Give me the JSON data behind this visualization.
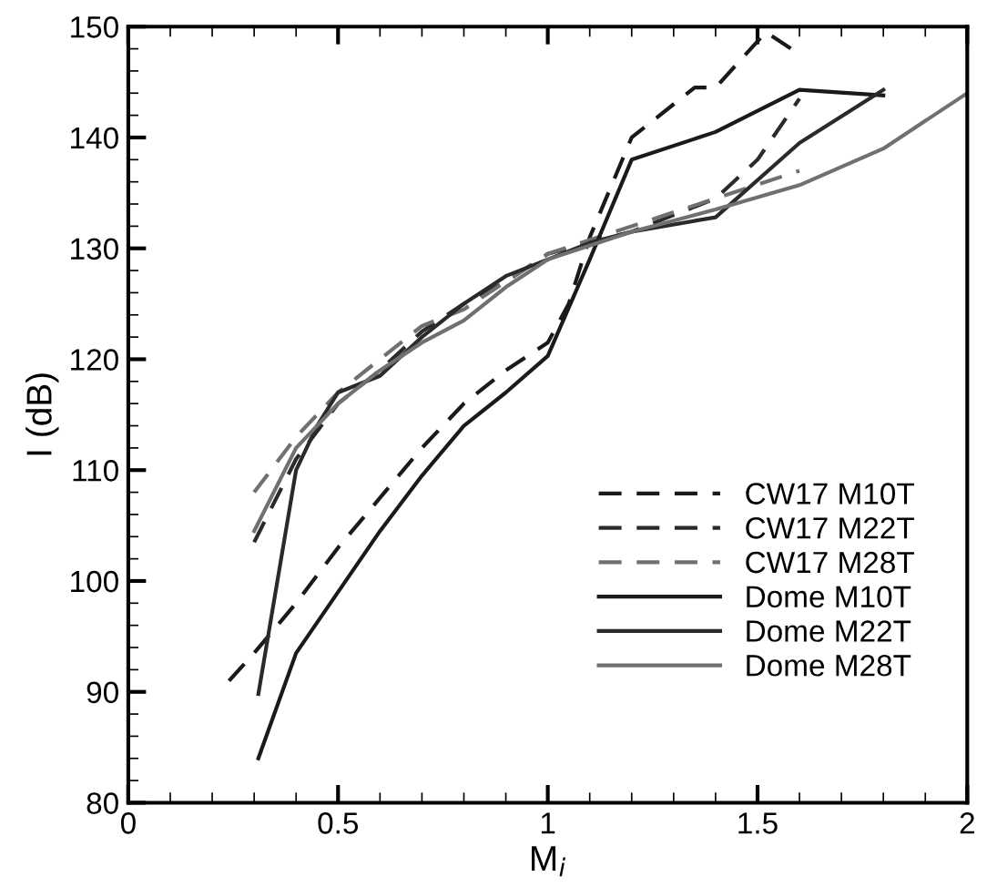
{
  "chart_data": {
    "type": "line",
    "xlabel": "M$_{i}$",
    "ylabel": "I (dB)",
    "xlim": [
      0,
      2
    ],
    "ylim": [
      80,
      150
    ],
    "xticks": [
      0,
      0.5,
      1,
      1.5,
      2
    ],
    "yticks": [
      80,
      90,
      100,
      110,
      120,
      130,
      140,
      150
    ],
    "grid": false,
    "legend": "bottom right",
    "marker": "none",
    "series": [
      {
        "name": "CW17 M10T",
        "color": "#1a1a1a",
        "line_style": "dashed",
        "x": [
          0.24,
          0.3,
          0.4,
          0.5,
          0.6,
          0.7,
          0.8,
          0.9,
          1.0,
          1.05,
          1.1,
          1.2,
          1.35,
          1.4,
          1.52,
          1.58
        ],
        "values": [
          91,
          93.5,
          98,
          103,
          107.5,
          112,
          116,
          119,
          121.5,
          125,
          131,
          140,
          144.5,
          144.5,
          149.5,
          148
        ]
      },
      {
        "name": "CW17 M22T",
        "color": "#2a2a2a",
        "line_style": "dashed",
        "x": [
          0.3,
          0.4,
          0.5,
          0.6,
          0.7,
          0.8,
          0.9,
          1.0,
          1.1,
          1.2,
          1.4,
          1.5,
          1.6
        ],
        "values": [
          103.5,
          111,
          116,
          119,
          122.5,
          125,
          127,
          129.5,
          130.5,
          131.5,
          134.5,
          138,
          143.5
        ]
      },
      {
        "name": "CW17 M28T",
        "color": "#707070",
        "line_style": "dashed",
        "x": [
          0.3,
          0.4,
          0.5,
          0.6,
          0.7,
          0.8,
          0.9,
          1.0,
          1.2,
          1.4,
          1.6
        ],
        "values": [
          108,
          113,
          117,
          120,
          123,
          124.5,
          127,
          129.5,
          132,
          134.5,
          137
        ]
      },
      {
        "name": "Dome M10T",
        "color": "#1a1a1a",
        "line_style": "solid",
        "x": [
          0.31,
          0.4,
          0.5,
          0.6,
          0.7,
          0.8,
          0.9,
          1.0,
          1.1,
          1.2,
          1.4,
          1.6,
          1.8
        ],
        "values": [
          84,
          93.5,
          99,
          104.5,
          109.5,
          114,
          117,
          120.3,
          129,
          138,
          140.5,
          144.3,
          143.8
        ]
      },
      {
        "name": "Dome M22T",
        "color": "#2a2a2a",
        "line_style": "solid",
        "x": [
          0.31,
          0.4,
          0.45,
          0.5,
          0.6,
          0.7,
          0.8,
          0.9,
          1.0,
          1.1,
          1.2,
          1.4,
          1.6,
          1.8
        ],
        "values": [
          89.8,
          110,
          114,
          117,
          118.5,
          122,
          125,
          127.5,
          129,
          130.5,
          131.5,
          132.8,
          139.5,
          144.3
        ]
      },
      {
        "name": "Dome M28T",
        "color": "#707070",
        "line_style": "solid",
        "x": [
          0.3,
          0.4,
          0.5,
          0.6,
          0.7,
          0.8,
          0.9,
          1.0,
          1.2,
          1.4,
          1.6,
          1.8,
          2.0
        ],
        "values": [
          104.5,
          112,
          116,
          119,
          121.5,
          123.5,
          126.5,
          129,
          131.5,
          133.5,
          135.7,
          139,
          144
        ]
      }
    ]
  }
}
